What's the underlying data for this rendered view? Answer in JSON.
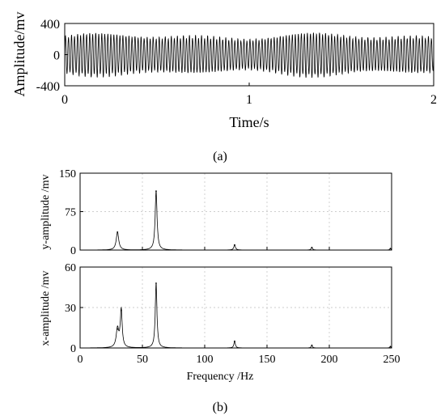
{
  "captions": {
    "a": "(a)",
    "b": "(b)"
  },
  "chart_data": [
    {
      "id": "a",
      "type": "line",
      "title": "",
      "xlabel": "Time/s",
      "ylabel": "Amplitude/mv",
      "xlim": [
        0,
        2
      ],
      "ylim": [
        -400,
        400
      ],
      "xticks": [
        0,
        1,
        2
      ],
      "yticks": [
        400,
        0,
        -400
      ],
      "grid": false,
      "series": [
        {
          "signal": "oscillation",
          "envelope_max": 300,
          "envelope_min": -300,
          "x_range": [
            0,
            2
          ]
        }
      ]
    },
    {
      "id": "b-top",
      "type": "line",
      "title": "",
      "xlabel": "",
      "ylabel": "y-amplitude /mv",
      "xlim": [
        0,
        250
      ],
      "ylim": [
        0,
        150
      ],
      "xticks": [
        0,
        50,
        100,
        150,
        200,
        250
      ],
      "yticks": [
        150,
        75,
        0
      ],
      "grid": true,
      "series": [
        {
          "peaks": [
            {
              "x": 30,
              "y": 35
            },
            {
              "x": 61,
              "y": 115
            },
            {
              "x": 124,
              "y": 10
            },
            {
              "x": 186,
              "y": 5
            },
            {
              "x": 249,
              "y": 3
            }
          ]
        }
      ]
    },
    {
      "id": "b-bottom",
      "type": "line",
      "title": "",
      "xlabel": "Frequency /Hz",
      "ylabel": "x-amplitude /mv",
      "xlim": [
        0,
        250
      ],
      "ylim": [
        0,
        60
      ],
      "xticks": [
        0,
        50,
        100,
        150,
        200,
        250
      ],
      "yticks": [
        60,
        30,
        0
      ],
      "grid": true,
      "series": [
        {
          "peaks": [
            {
              "x": 30,
              "y": 14
            },
            {
              "x": 33,
              "y": 28
            },
            {
              "x": 61,
              "y": 48
            },
            {
              "x": 124,
              "y": 5
            },
            {
              "x": 186,
              "y": 2
            },
            {
              "x": 249,
              "y": 1
            }
          ]
        }
      ]
    }
  ]
}
